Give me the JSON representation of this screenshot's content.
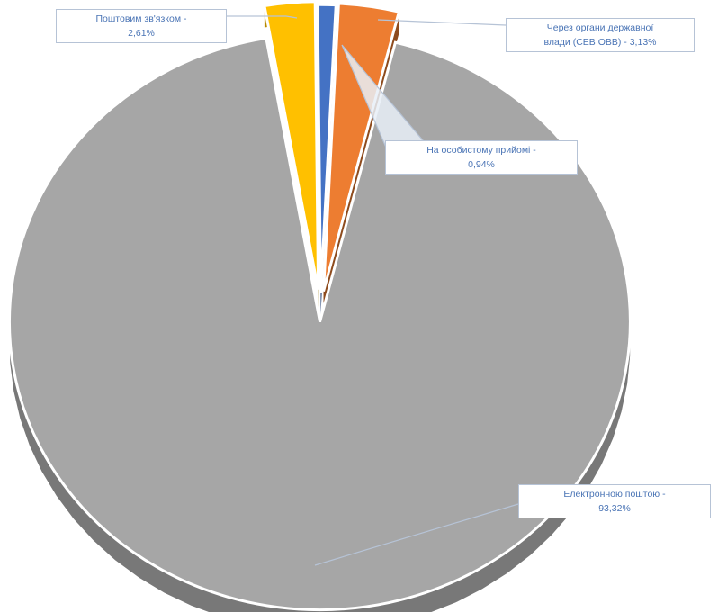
{
  "chart_data": {
    "type": "pie",
    "style": "3d-exploded",
    "slices": [
      {
        "label": "Електронною поштою",
        "value": 93.32,
        "value_text": "93,32%",
        "color": "#a6a6a6"
      },
      {
        "label": "Поштовим зв'язком",
        "value": 2.61,
        "value_text": "2,61%",
        "color": "#ffc000"
      },
      {
        "label": "На особистому прийомі",
        "value": 0.94,
        "value_text": "0,94%",
        "color": "#4472c4"
      },
      {
        "label": "Через органи державної влади (СЕВ ОВВ)",
        "value": 3.13,
        "value_text": "3,13%",
        "color": "#ed7d31"
      }
    ],
    "title": "",
    "legend": "none"
  },
  "labels": {
    "email": {
      "line1": "Електронною поштою -",
      "line2": "93,32%"
    },
    "post": {
      "line1": "Поштовим зв'язком -",
      "line2": "2,61%"
    },
    "personal": {
      "line1": "На особистому прийомі -",
      "line2": "0,94%"
    },
    "gov": {
      "line1": "Через органи державної",
      "line2": "влади (СЕВ ОВВ) - 3,13%"
    }
  },
  "colors": {
    "label_text": "#4a74b5",
    "label_border": "#b6c3d6",
    "leader_line": "#b6c3d6"
  }
}
